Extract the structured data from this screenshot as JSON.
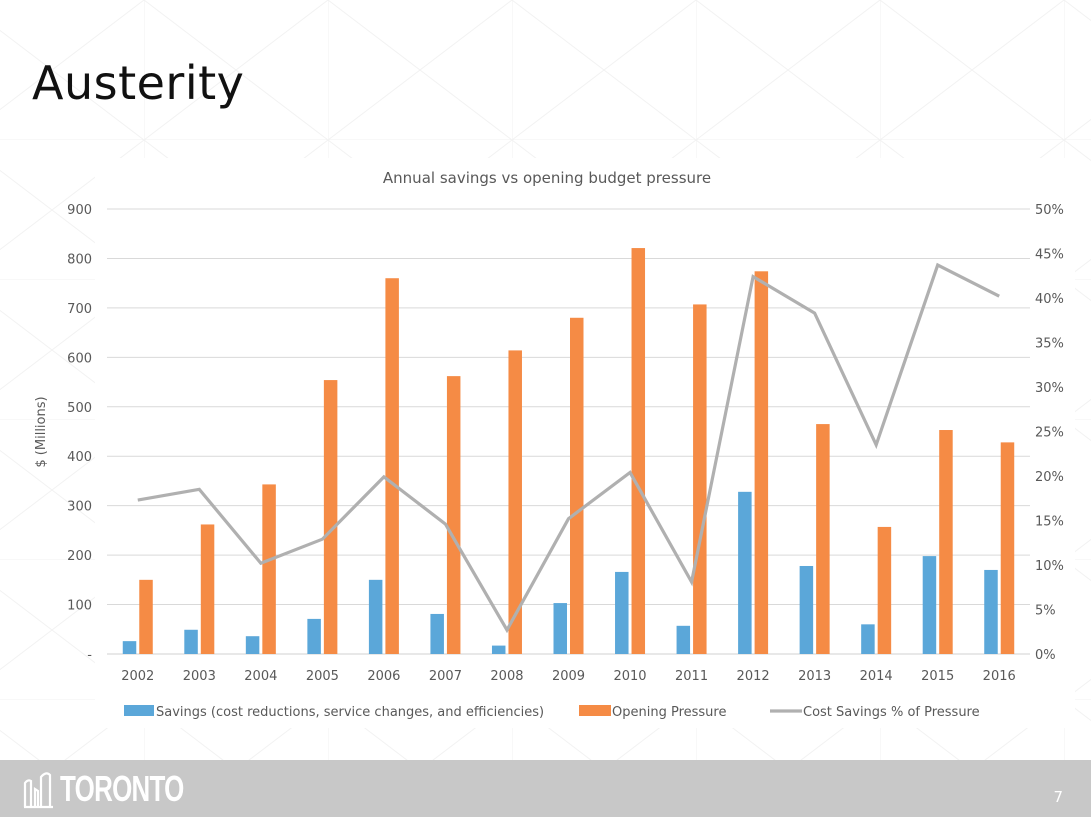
{
  "slide": {
    "title": "Austerity",
    "page_number": "7",
    "logo_text": "TORONTO"
  },
  "colors": {
    "savings": "#5ba7d9",
    "pressure": "#f58b45",
    "percent_line": "#b0b0b0",
    "grid": "#d9d9d9",
    "axis_text": "#595959",
    "footer": "#c8c8c8"
  },
  "chart_data": {
    "type": "bar",
    "title": "Annual savings vs opening budget pressure",
    "xlabel": "",
    "ylabel": "$ (Millions)",
    "y2label": "",
    "categories": [
      "2002",
      "2003",
      "2004",
      "2005",
      "2006",
      "2007",
      "2008",
      "2009",
      "2010",
      "2011",
      "2012",
      "2013",
      "2014",
      "2015",
      "2016"
    ],
    "ylim": [
      0,
      900
    ],
    "y_ticks": [
      0,
      100,
      200,
      300,
      400,
      500,
      600,
      700,
      800,
      900
    ],
    "y_tick_labels": [
      "-",
      "100",
      "200",
      "300",
      "400",
      "500",
      "600",
      "700",
      "800",
      "900"
    ],
    "y2lim": [
      0,
      0.5
    ],
    "y2_ticks": [
      0,
      0.05,
      0.1,
      0.15,
      0.2,
      0.25,
      0.3,
      0.35,
      0.4,
      0.45,
      0.5
    ],
    "y2_tick_labels": [
      "0%",
      "5%",
      "10%",
      "15%",
      "20%",
      "25%",
      "30%",
      "35%",
      "40%",
      "45%",
      "50%"
    ],
    "grid": true,
    "legend_position": "bottom",
    "series": [
      {
        "name": "Savings (cost reductions, service changes, and efficiencies)",
        "type": "bar",
        "axis": "left",
        "values": [
          26,
          49,
          36,
          71,
          150,
          81,
          17,
          103,
          166,
          57,
          328,
          178,
          60,
          198,
          170
        ]
      },
      {
        "name": "Opening Pressure",
        "type": "bar",
        "axis": "left",
        "values": [
          150,
          262,
          343,
          554,
          760,
          562,
          614,
          680,
          821,
          707,
          774,
          465,
          257,
          453,
          428
        ]
      },
      {
        "name": "Cost Savings % of Pressure",
        "type": "line",
        "axis": "right",
        "values": [
          0.173,
          0.185,
          0.102,
          0.129,
          0.199,
          0.146,
          0.027,
          0.152,
          0.204,
          0.081,
          0.424,
          0.383,
          0.235,
          0.437,
          0.402
        ]
      }
    ]
  }
}
